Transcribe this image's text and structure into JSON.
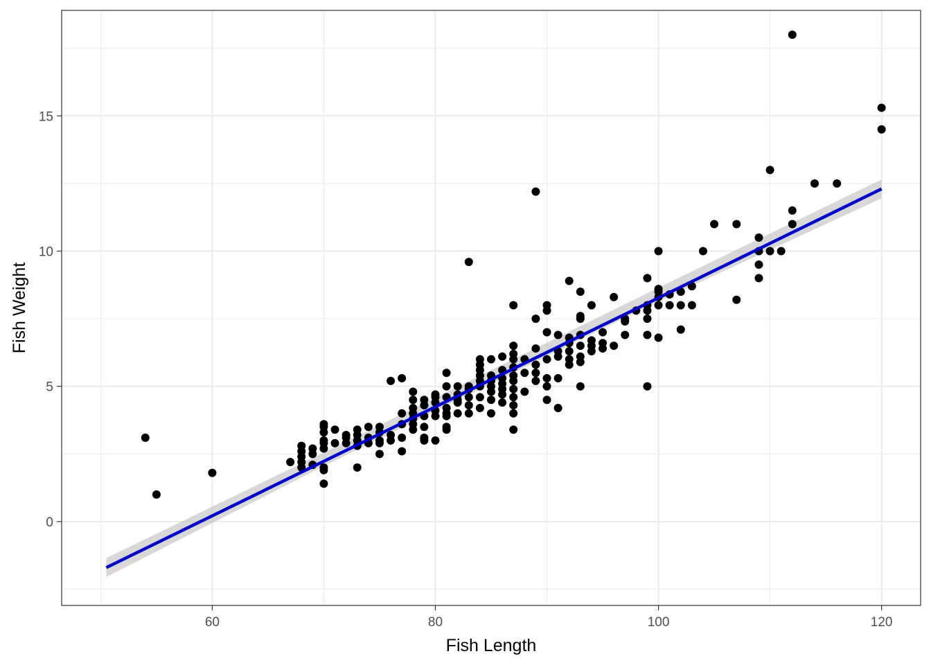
{
  "chart_data": {
    "type": "scatter",
    "title": "",
    "xlabel": "Fish Length",
    "ylabel": "Fish Weight",
    "xlim": [
      46.5,
      123.5
    ],
    "ylim": [
      -3.1,
      18.9
    ],
    "x_ticks": [
      60,
      80,
      100,
      120
    ],
    "y_ticks": [
      0,
      5,
      10,
      15
    ],
    "x_tick_labels": [
      "60",
      "80",
      "100",
      "120"
    ],
    "y_tick_labels": [
      "0",
      "5",
      "10",
      "15"
    ],
    "grid": true,
    "legend": "none",
    "colors": {
      "points": "#000000",
      "fit_line": "#0000cc",
      "confidence_band": "#bebebe",
      "grid": "#ebebeb",
      "panel_border": "#333333"
    },
    "points": [
      [
        54,
        3.1
      ],
      [
        55,
        1.0
      ],
      [
        60,
        1.8
      ],
      [
        67,
        2.2
      ],
      [
        68,
        2.0
      ],
      [
        68,
        2.2
      ],
      [
        68,
        2.4
      ],
      [
        68,
        2.6
      ],
      [
        68,
        2.8
      ],
      [
        69,
        2.1
      ],
      [
        69,
        2.5
      ],
      [
        69,
        2.7
      ],
      [
        70,
        1.4
      ],
      [
        70,
        1.9
      ],
      [
        70,
        2.0
      ],
      [
        70,
        2.7
      ],
      [
        70,
        2.9
      ],
      [
        70,
        3.0
      ],
      [
        70,
        3.3
      ],
      [
        70,
        3.5
      ],
      [
        70,
        3.6
      ],
      [
        71,
        2.9
      ],
      [
        71,
        3.4
      ],
      [
        72,
        2.9
      ],
      [
        72,
        3.1
      ],
      [
        72,
        3.2
      ],
      [
        73,
        2.0
      ],
      [
        73,
        2.8
      ],
      [
        73,
        3.0
      ],
      [
        73,
        3.2
      ],
      [
        73,
        3.4
      ],
      [
        74,
        2.9
      ],
      [
        74,
        3.1
      ],
      [
        74,
        3.5
      ],
      [
        75,
        2.5
      ],
      [
        75,
        2.9
      ],
      [
        75,
        3.0
      ],
      [
        75,
        3.3
      ],
      [
        75,
        3.5
      ],
      [
        76,
        3.0
      ],
      [
        76,
        3.2
      ],
      [
        76,
        5.2
      ],
      [
        77,
        2.6
      ],
      [
        77,
        3.1
      ],
      [
        77,
        3.6
      ],
      [
        77,
        4.0
      ],
      [
        77,
        5.3
      ],
      [
        78,
        3.4
      ],
      [
        78,
        3.6
      ],
      [
        78,
        3.8
      ],
      [
        78,
        4.0
      ],
      [
        78,
        4.2
      ],
      [
        78,
        4.5
      ],
      [
        78,
        4.8
      ],
      [
        79,
        3.0
      ],
      [
        79,
        3.1
      ],
      [
        79,
        3.5
      ],
      [
        79,
        3.9
      ],
      [
        79,
        4.3
      ],
      [
        79,
        4.5
      ],
      [
        80,
        3.0
      ],
      [
        80,
        3.9
      ],
      [
        80,
        4.1
      ],
      [
        80,
        4.4
      ],
      [
        80,
        4.6
      ],
      [
        80,
        4.7
      ],
      [
        81,
        3.4
      ],
      [
        81,
        3.5
      ],
      [
        81,
        3.9
      ],
      [
        81,
        4.0
      ],
      [
        81,
        4.2
      ],
      [
        81,
        4.6
      ],
      [
        81,
        5.0
      ],
      [
        81,
        5.5
      ],
      [
        82,
        4.0
      ],
      [
        82,
        4.4
      ],
      [
        82,
        4.5
      ],
      [
        82,
        4.7
      ],
      [
        82,
        5.0
      ],
      [
        83,
        4.0
      ],
      [
        83,
        4.3
      ],
      [
        83,
        4.6
      ],
      [
        83,
        4.9
      ],
      [
        83,
        5.0
      ],
      [
        83,
        9.6
      ],
      [
        84,
        4.2
      ],
      [
        84,
        4.6
      ],
      [
        84,
        5.0
      ],
      [
        84,
        5.2
      ],
      [
        84,
        5.4
      ],
      [
        84,
        5.6
      ],
      [
        84,
        5.8
      ],
      [
        84,
        6.0
      ],
      [
        85,
        4.0
      ],
      [
        85,
        4.5
      ],
      [
        85,
        4.8
      ],
      [
        85,
        5.0
      ],
      [
        85,
        5.2
      ],
      [
        85,
        5.4
      ],
      [
        85,
        6.0
      ],
      [
        86,
        4.4
      ],
      [
        86,
        4.7
      ],
      [
        86,
        4.9
      ],
      [
        86,
        5.1
      ],
      [
        86,
        5.3
      ],
      [
        86,
        5.6
      ],
      [
        86,
        6.1
      ],
      [
        87,
        3.4
      ],
      [
        87,
        4.0
      ],
      [
        87,
        4.3
      ],
      [
        87,
        4.6
      ],
      [
        87,
        4.9
      ],
      [
        87,
        5.2
      ],
      [
        87,
        5.4
      ],
      [
        87,
        5.7
      ],
      [
        87,
        6.0
      ],
      [
        87,
        6.2
      ],
      [
        87,
        6.5
      ],
      [
        87,
        8.0
      ],
      [
        88,
        4.8
      ],
      [
        88,
        5.5
      ],
      [
        88,
        6.0
      ],
      [
        89,
        5.2
      ],
      [
        89,
        5.5
      ],
      [
        89,
        5.8
      ],
      [
        89,
        6.4
      ],
      [
        89,
        7.5
      ],
      [
        89,
        12.2
      ],
      [
        90,
        4.5
      ],
      [
        90,
        5.0
      ],
      [
        90,
        5.3
      ],
      [
        90,
        6.0
      ],
      [
        90,
        7.0
      ],
      [
        90,
        7.8
      ],
      [
        90,
        8.0
      ],
      [
        91,
        4.2
      ],
      [
        91,
        5.3
      ],
      [
        91,
        6.1
      ],
      [
        91,
        6.3
      ],
      [
        91,
        6.9
      ],
      [
        92,
        5.8
      ],
      [
        92,
        6.0
      ],
      [
        92,
        6.3
      ],
      [
        92,
        6.6
      ],
      [
        92,
        6.8
      ],
      [
        92,
        8.9
      ],
      [
        93,
        5.0
      ],
      [
        93,
        5.9
      ],
      [
        93,
        6.1
      ],
      [
        93,
        6.5
      ],
      [
        93,
        6.9
      ],
      [
        93,
        7.5
      ],
      [
        93,
        7.6
      ],
      [
        93,
        8.5
      ],
      [
        94,
        6.3
      ],
      [
        94,
        6.5
      ],
      [
        94,
        6.7
      ],
      [
        94,
        8.0
      ],
      [
        95,
        6.4
      ],
      [
        95,
        6.6
      ],
      [
        95,
        7.0
      ],
      [
        96,
        6.5
      ],
      [
        96,
        8.3
      ],
      [
        97,
        6.9
      ],
      [
        97,
        7.4
      ],
      [
        97,
        7.5
      ],
      [
        98,
        7.8
      ],
      [
        99,
        5.0
      ],
      [
        99,
        6.9
      ],
      [
        99,
        7.5
      ],
      [
        99,
        7.8
      ],
      [
        99,
        8.0
      ],
      [
        99,
        9.0
      ],
      [
        100,
        6.8
      ],
      [
        100,
        8.0
      ],
      [
        100,
        8.3
      ],
      [
        100,
        8.5
      ],
      [
        100,
        8.6
      ],
      [
        100,
        10.0
      ],
      [
        101,
        8.0
      ],
      [
        101,
        8.4
      ],
      [
        102,
        7.1
      ],
      [
        102,
        8.0
      ],
      [
        102,
        8.5
      ],
      [
        103,
        8.0
      ],
      [
        103,
        8.7
      ],
      [
        104,
        10.0
      ],
      [
        105,
        11.0
      ],
      [
        107,
        8.2
      ],
      [
        107,
        11.0
      ],
      [
        109,
        9.0
      ],
      [
        109,
        9.5
      ],
      [
        109,
        10.0
      ],
      [
        109,
        10.5
      ],
      [
        110,
        10.0
      ],
      [
        110,
        13.0
      ],
      [
        111,
        10.0
      ],
      [
        112,
        11.0
      ],
      [
        112,
        11.5
      ],
      [
        112,
        18.0
      ],
      [
        114,
        12.5
      ],
      [
        116,
        12.5
      ],
      [
        120,
        14.5
      ],
      [
        120,
        15.3
      ]
    ],
    "fit_line": {
      "x": [
        50.5,
        120
      ],
      "y": [
        -1.7,
        12.3
      ]
    },
    "confidence_band": {
      "x": [
        50.5,
        70,
        85,
        100,
        120
      ],
      "upper": [
        -1.35,
        2.55,
        5.6,
        8.65,
        12.65
      ],
      "lower": [
        -2.05,
        2.05,
        5.1,
        8.15,
        11.95
      ]
    }
  }
}
